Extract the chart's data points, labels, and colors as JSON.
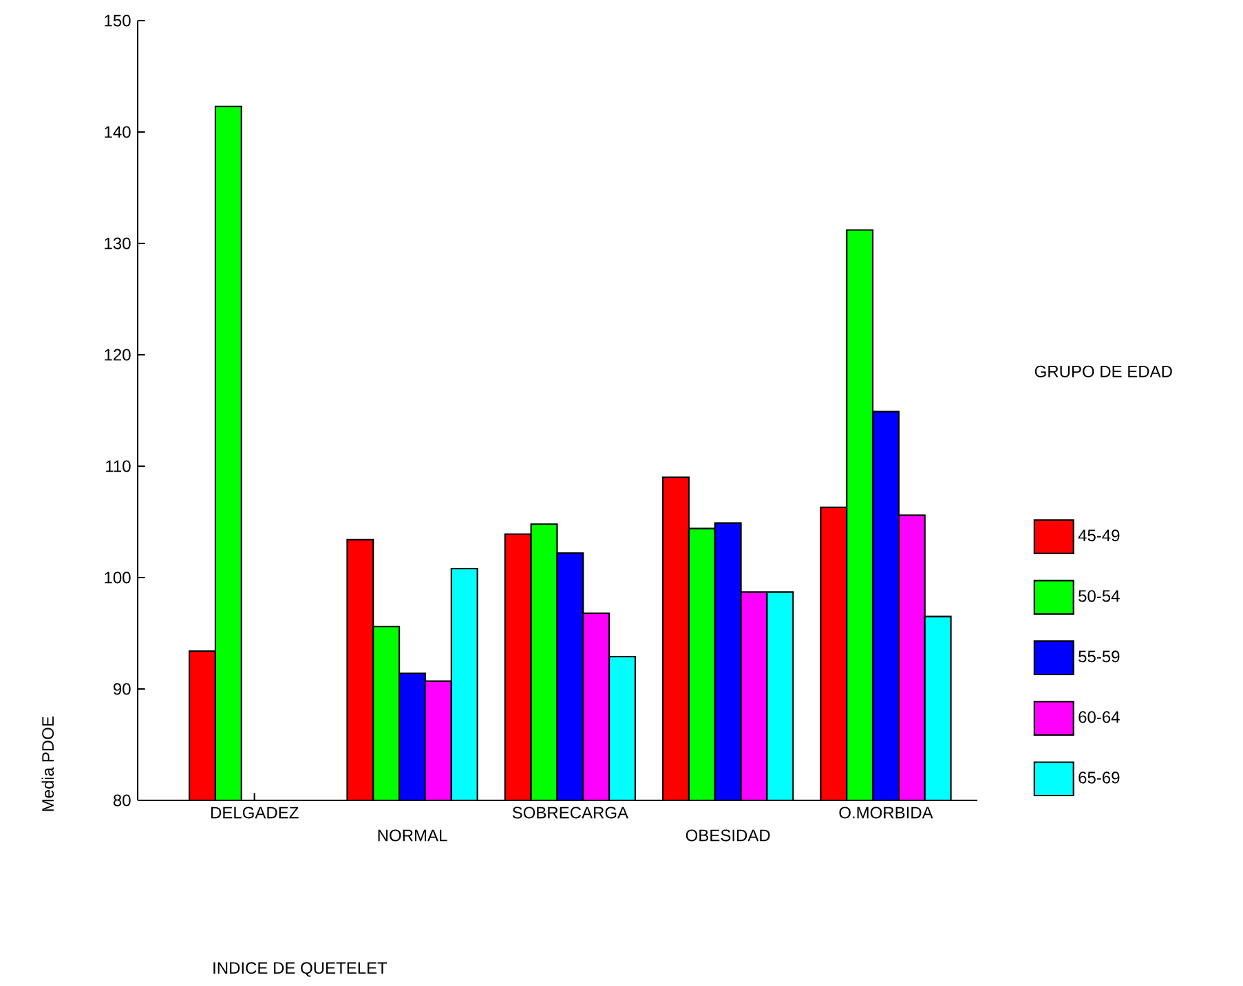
{
  "chart_data": {
    "type": "bar",
    "annotations": [
      "INDICE DE QUETELET"
    ],
    "ylabel": "Media PDOE",
    "legend_title": "GRUPO DE EDAD",
    "categories": [
      "DELGADEZ",
      "NORMAL",
      "SOBRECARGA",
      "OBESIDAD",
      "O.MORBIDA"
    ],
    "series": [
      {
        "name": "45-49",
        "color": "#ff0000",
        "values": [
          93.4,
          103.4,
          103.9,
          109.0,
          106.3
        ]
      },
      {
        "name": "50-54",
        "color": "#00ff00",
        "values": [
          142.3,
          95.6,
          104.8,
          104.4,
          131.2
        ]
      },
      {
        "name": "55-59",
        "color": "#0000ff",
        "values": [
          null,
          91.4,
          102.2,
          104.9,
          114.9
        ]
      },
      {
        "name": "60-64",
        "color": "#ff00ff",
        "values": [
          null,
          90.7,
          96.8,
          98.7,
          105.6
        ]
      },
      {
        "name": "65-69",
        "color": "#00ffff",
        "values": [
          null,
          100.8,
          92.9,
          98.7,
          96.5
        ]
      }
    ],
    "ylim": [
      80,
      150
    ],
    "yticks": [
      80,
      90,
      100,
      110,
      120,
      130,
      140,
      150
    ],
    "grid": false,
    "legend": "right"
  }
}
